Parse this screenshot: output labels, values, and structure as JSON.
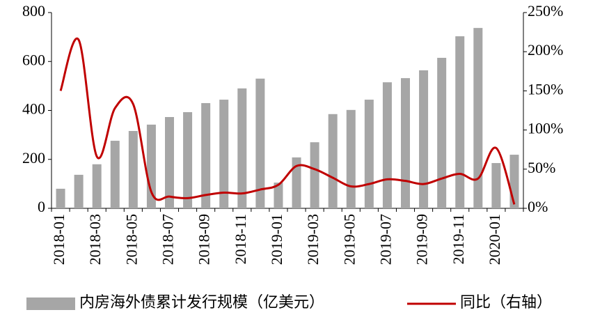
{
  "chart_data": {
    "type": "bar-line",
    "categories": [
      "2018-01",
      null,
      "2018-03",
      null,
      "2018-05",
      null,
      "2018-07",
      null,
      "2018-09",
      null,
      "2018-11",
      null,
      "2019-01",
      null,
      "2019-03",
      null,
      "2019-05",
      null,
      "2019-07",
      null,
      "2019-09",
      null,
      "2019-11",
      null,
      "2020-01",
      null
    ],
    "series": [
      {
        "name": "内房海外债累计发行规模（亿美元）",
        "color": "#a6a6a6",
        "type": "bar",
        "values": [
          80,
          137,
          180,
          276,
          316,
          342,
          373,
          393,
          430,
          444,
          490,
          530,
          105,
          208,
          270,
          385,
          402,
          444,
          515,
          532,
          564,
          615,
          703,
          737,
          185,
          219
        ]
      },
      {
        "name": "同比（右轴）",
        "color": "#c00000",
        "type": "line",
        "axis": "y2",
        "values": [
          150,
          215,
          66,
          128,
          133,
          21,
          15,
          13,
          17,
          20,
          19,
          24,
          30,
          54,
          50,
          39,
          28,
          31,
          37,
          35,
          31,
          38,
          44,
          38,
          77,
          5
        ]
      }
    ],
    "ylim": [
      0,
      800
    ],
    "yticks": [
      0,
      200,
      400,
      600,
      800
    ],
    "y2lim": [
      0,
      250
    ],
    "y2ticks": [
      {
        "value": 0,
        "label": "0%"
      },
      {
        "value": 50,
        "label": "50%"
      },
      {
        "value": 100,
        "label": "100%"
      },
      {
        "value": 150,
        "label": "150%"
      },
      {
        "value": 200,
        "label": "200%"
      },
      {
        "value": 250,
        "label": "250%"
      }
    ],
    "grid": false
  }
}
